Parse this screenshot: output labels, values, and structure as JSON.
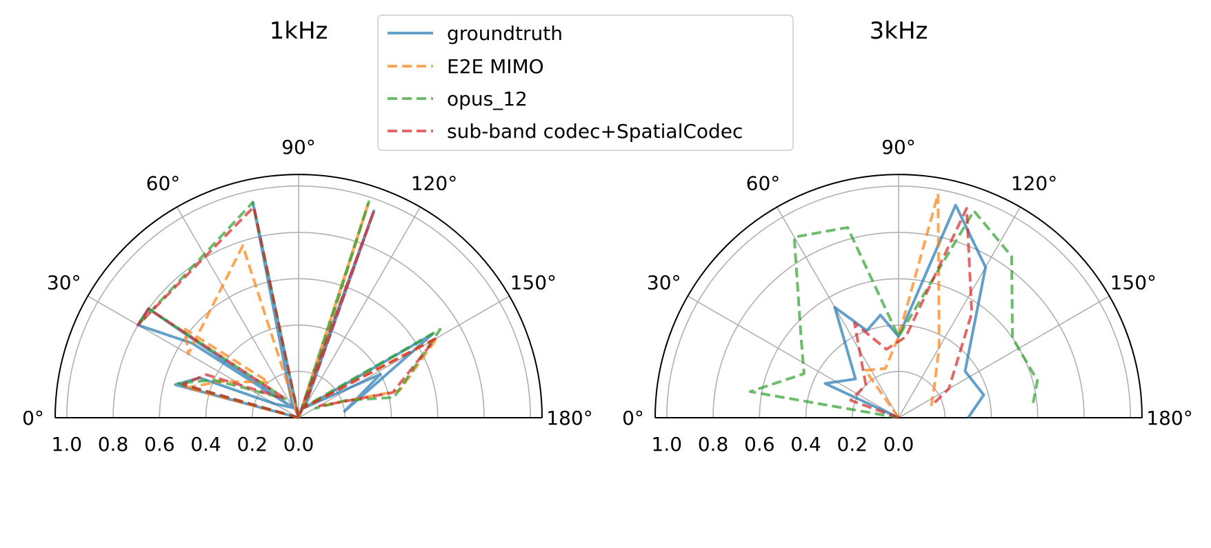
{
  "legend": {
    "placement": "top-center",
    "entries": [
      {
        "label": "groundtruth",
        "color": "#1f77b4",
        "style": "solid"
      },
      {
        "label": "E2E MIMO",
        "color": "#ff7f0e",
        "style": "dashed"
      },
      {
        "label": "opus_12",
        "color": "#2ca02c",
        "style": "dashed"
      },
      {
        "label": "sub-band codec+SpatialCodec",
        "color": "#d62728",
        "style": "dashed"
      }
    ]
  },
  "chart_data": [
    {
      "type": "line",
      "projection": "polar-half",
      "title": "1kHz",
      "theta_ticks": [
        "0°",
        "30°",
        "60°",
        "90°",
        "120°",
        "150°",
        "180°"
      ],
      "r_ticks": [
        "1.0",
        "0.8",
        "0.6",
        "0.4",
        "0.2",
        "0.0"
      ],
      "rlim": [
        0,
        1.05
      ],
      "grid": true,
      "series": [
        {
          "name": "groundtruth",
          "points": [
            [
              0,
              0
            ],
            [
              15,
              0.55
            ],
            [
              22,
              0.46
            ],
            [
              30,
              0.12
            ],
            [
              60,
              0.05
            ],
            [
              36,
              0.8
            ],
            [
              30,
              0.8
            ],
            [
              35,
              0.56
            ],
            [
              60,
              0.05
            ],
            [
              78,
              0.95
            ],
            [
              90,
              0.0
            ],
            [
              110,
              0.95
            ],
            [
              120,
              0.05
            ],
            [
              148,
              0.68
            ],
            [
              172,
              0.2
            ],
            [
              152,
              0.4
            ],
            [
              120,
              0.05
            ]
          ]
        },
        {
          "name": "E2E MIMO",
          "points": [
            [
              0,
              0
            ],
            [
              15,
              0.5
            ],
            [
              25,
              0.37
            ],
            [
              50,
              0.2
            ],
            [
              38,
              0.62
            ],
            [
              30,
              0.55
            ],
            [
              72,
              0.78
            ],
            [
              90,
              0.0
            ],
            [
              108,
              0.97
            ],
            [
              115,
              0.05
            ],
            [
              150,
              0.69
            ],
            [
              165,
              0.45
            ],
            [
              150,
              0.1
            ]
          ]
        },
        {
          "name": "opus_12",
          "points": [
            [
              0,
              0
            ],
            [
              16,
              0.54
            ],
            [
              24,
              0.4
            ],
            [
              55,
              0.1
            ],
            [
              36,
              0.8
            ],
            [
              30,
              0.8
            ],
            [
              78,
              0.95
            ],
            [
              90,
              0.0
            ],
            [
              108,
              0.98
            ],
            [
              115,
              0.05
            ],
            [
              148,
              0.72
            ],
            [
              168,
              0.42
            ],
            [
              160,
              0.22
            ],
            [
              150,
              0.08
            ]
          ]
        },
        {
          "name": "sub-band codec+SpatialCodec",
          "points": [
            [
              0,
              0
            ],
            [
              16,
              0.52
            ],
            [
              25,
              0.44
            ],
            [
              55,
              0.1
            ],
            [
              36,
              0.8
            ],
            [
              30,
              0.8
            ],
            [
              78,
              0.93
            ],
            [
              90,
              0.0
            ],
            [
              110,
              0.95
            ],
            [
              120,
              0.05
            ],
            [
              150,
              0.68
            ],
            [
              165,
              0.42
            ],
            [
              150,
              0.1
            ]
          ]
        }
      ]
    },
    {
      "type": "line",
      "projection": "polar-half",
      "title": "3kHz",
      "theta_ticks": [
        "0°",
        "30°",
        "60°",
        "90°",
        "120°",
        "150°",
        "180°"
      ],
      "r_ticks": [
        "1.0",
        "0.8",
        "0.6",
        "0.4",
        "0.2",
        "0.0"
      ],
      "rlim": [
        0,
        1.05
      ],
      "grid": true,
      "series": [
        {
          "name": "groundtruth",
          "points": [
            [
              0,
              0
            ],
            [
              25,
              0.35
            ],
            [
              42,
              0.25
            ],
            [
              60,
              0.55
            ],
            [
              70,
              0.4
            ],
            [
              80,
              0.45
            ],
            [
              90,
              0.35
            ],
            [
              105,
              0.95
            ],
            [
              120,
              0.75
            ],
            [
              145,
              0.35
            ],
            [
              165,
              0.38
            ],
            [
              180,
              0.3
            ]
          ]
        },
        {
          "name": "E2E MIMO",
          "points": [
            [
              0,
              0
            ],
            [
              55,
              0.25
            ],
            [
              75,
              0.22
            ],
            [
              90,
              0.35
            ],
            [
              100,
              0.98
            ],
            [
              120,
              0.35
            ],
            [
              140,
              0.2
            ],
            [
              160,
              0.15
            ]
          ]
        },
        {
          "name": "opus_12",
          "points": [
            [
              0,
              0
            ],
            [
              10,
              0.65
            ],
            [
              25,
              0.45
            ],
            [
              40,
              0.55
            ],
            [
              60,
              0.9
            ],
            [
              75,
              0.85
            ],
            [
              90,
              0.35
            ],
            [
              110,
              0.95
            ],
            [
              125,
              0.85
            ],
            [
              145,
              0.6
            ],
            [
              165,
              0.62
            ],
            [
              175,
              0.58
            ]
          ]
        },
        {
          "name": "sub-band codec+SpatialCodec",
          "points": [
            [
              0,
              0
            ],
            [
              20,
              0.22
            ],
            [
              45,
              0.2
            ],
            [
              65,
              0.45
            ],
            [
              80,
              0.3
            ],
            [
              95,
              0.35
            ],
            [
              108,
              0.95
            ],
            [
              125,
              0.55
            ],
            [
              150,
              0.25
            ],
            [
              160,
              0.15
            ]
          ]
        }
      ]
    }
  ]
}
